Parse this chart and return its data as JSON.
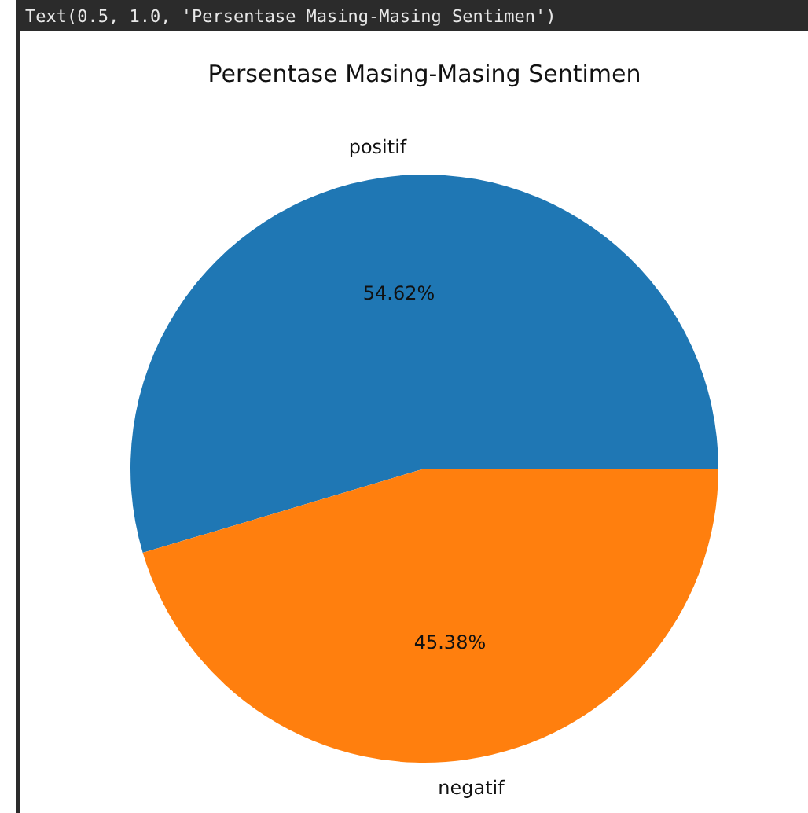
{
  "chart_data": {
    "type": "pie",
    "title": "Persentase Masing-Masing Sentimen",
    "annotations": [
      "Text(0.5, 1.0, 'Persentase Masing-Masing Sentimen')"
    ],
    "categories": [
      "positif",
      "negatif"
    ],
    "values": [
      54.62,
      45.38
    ],
    "value_labels": [
      "54.62%",
      "45.38%"
    ],
    "colors": [
      "#1f77b4",
      "#ff7f0e"
    ]
  }
}
